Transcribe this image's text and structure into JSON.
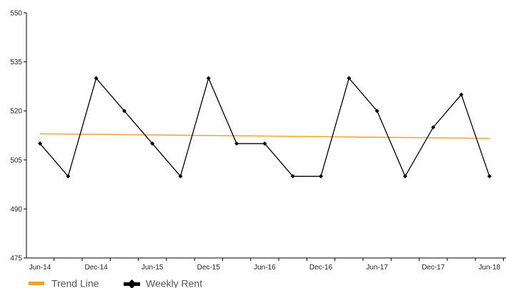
{
  "chart_data": {
    "type": "line",
    "title": "",
    "xlabel": "",
    "ylabel": "",
    "ylim": [
      475,
      550
    ],
    "yticks": [
      475,
      490,
      505,
      520,
      535,
      550
    ],
    "x_tick_labels": [
      "Jun-14",
      "Dec-14",
      "Jun-15",
      "Dec-15",
      "Jun-16",
      "Dec-16",
      "Jun-17",
      "Dec-17",
      "Jun-18"
    ],
    "grid": false,
    "legend_position": "bottom-left",
    "series": [
      {
        "name": "Weekly Rent",
        "color": "#000000",
        "marker": "diamond",
        "values": [
          510,
          500,
          530,
          520,
          510,
          500,
          530,
          510,
          510,
          500,
          500,
          530,
          520,
          500,
          515,
          525,
          500
        ]
      },
      {
        "name": "Trend Line",
        "color": "#f7a030",
        "marker": "none",
        "start": 513,
        "end": 511.6
      }
    ]
  }
}
